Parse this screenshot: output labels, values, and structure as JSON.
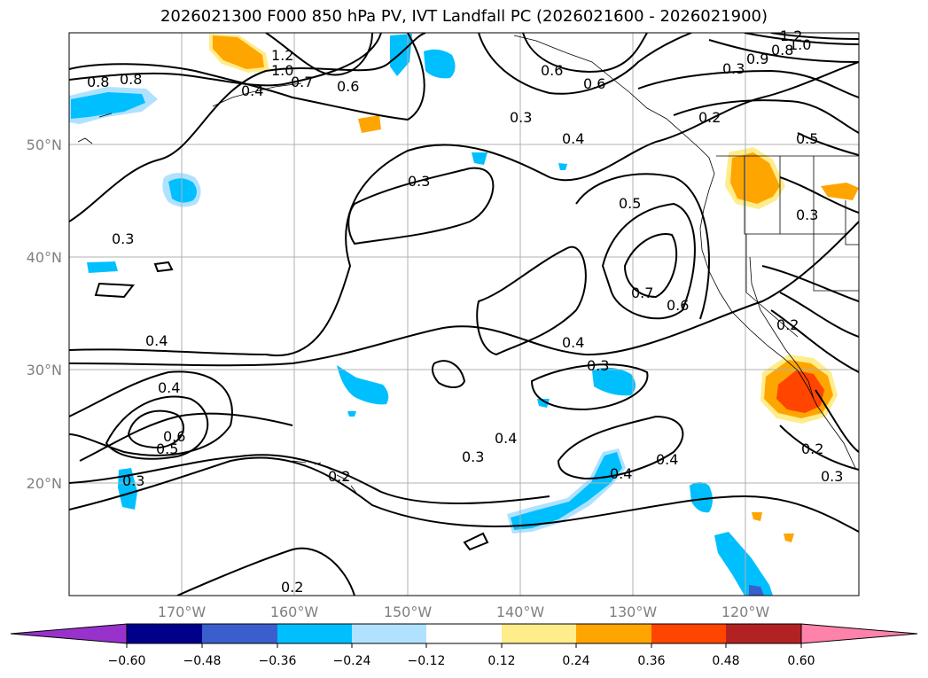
{
  "title": "2026021300 F000 850 hPa PV, IVT Landfall PC (2026021600 - 2026021900)",
  "map": {
    "lon_labels": [
      "170°W",
      "160°W",
      "150°W",
      "140°W",
      "130°W",
      "120°W"
    ],
    "lat_labels": [
      "50°N",
      "40°N",
      "30°N",
      "20°N"
    ],
    "gridlines": true
  },
  "colorbar": {
    "ticks": [
      "−0.60",
      "−0.48",
      "−0.36",
      "−0.24",
      "−0.12",
      "0.12",
      "0.24",
      "0.36",
      "0.48",
      "0.60"
    ],
    "colors": [
      "#9932cc",
      "#00008b",
      "#3a5fcd",
      "#00bfff",
      "#b0e2ff",
      "#ffffff",
      "#ffec8b",
      "#ffa500",
      "#ff4500",
      "#b22222",
      "#ff82ab"
    ],
    "extend": "both"
  },
  "contour_labels": [
    "0.8",
    "0.6",
    "1.0",
    "1.2",
    "0.8",
    "0.4",
    "0.7",
    "0.6",
    "0.3",
    "0.6",
    "0.3",
    "0.4",
    "0.2",
    "0.8",
    "0.9",
    "1.0",
    "1.2",
    "0.5",
    "0.3",
    "0.3",
    "0.5",
    "0.3",
    "0.7",
    "0.6",
    "0.4",
    "0.4",
    "0.3",
    "0.2",
    "0.4",
    "0.5",
    "0.6",
    "0.3",
    "0.3",
    "0.2",
    "0.4",
    "0.4",
    "0.4",
    "0.2",
    "0.3",
    "0.2"
  ]
}
